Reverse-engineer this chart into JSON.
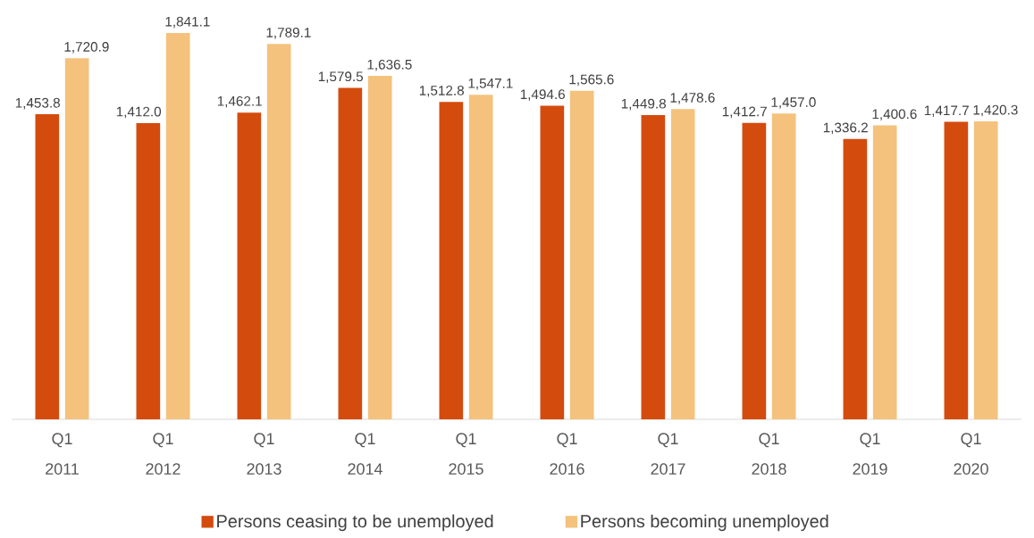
{
  "chart_data": {
    "type": "bar",
    "categories": [
      "Q1 2011",
      "Q1 2012",
      "Q1 2013",
      "Q1 2014",
      "Q1 2015",
      "Q1 2016",
      "Q1 2017",
      "Q1 2018",
      "Q1 2019",
      "Q1 2020"
    ],
    "series": [
      {
        "name": "Persons ceasing to be unemployed",
        "color": "#d44b0e",
        "values": [
          1453.8,
          1412.0,
          1462.1,
          1579.5,
          1512.8,
          1494.6,
          1449.8,
          1412.7,
          1336.2,
          1417.7
        ],
        "value_labels": [
          "1,453.8",
          "1,412.0",
          "1,462.1",
          "1,579.5",
          "1,512.8",
          "1,494.6",
          "1,449.8",
          "1,412.7",
          "1,336.2",
          "1,417.7"
        ]
      },
      {
        "name": "Persons becoming unemployed",
        "color": "#f4c27c",
        "values": [
          1720.9,
          1841.1,
          1789.1,
          1636.5,
          1547.1,
          1565.6,
          1478.6,
          1457.0,
          1400.6,
          1420.3
        ],
        "value_labels": [
          "1,720.9",
          "1,841.1",
          "1,789.1",
          "1,636.5",
          "1,547.1",
          "1,565.6",
          "1,478.6",
          "1,457.0",
          "1,400.6",
          "1,420.3"
        ]
      }
    ],
    "legend": "bottom",
    "tick_labels": "x"
  }
}
